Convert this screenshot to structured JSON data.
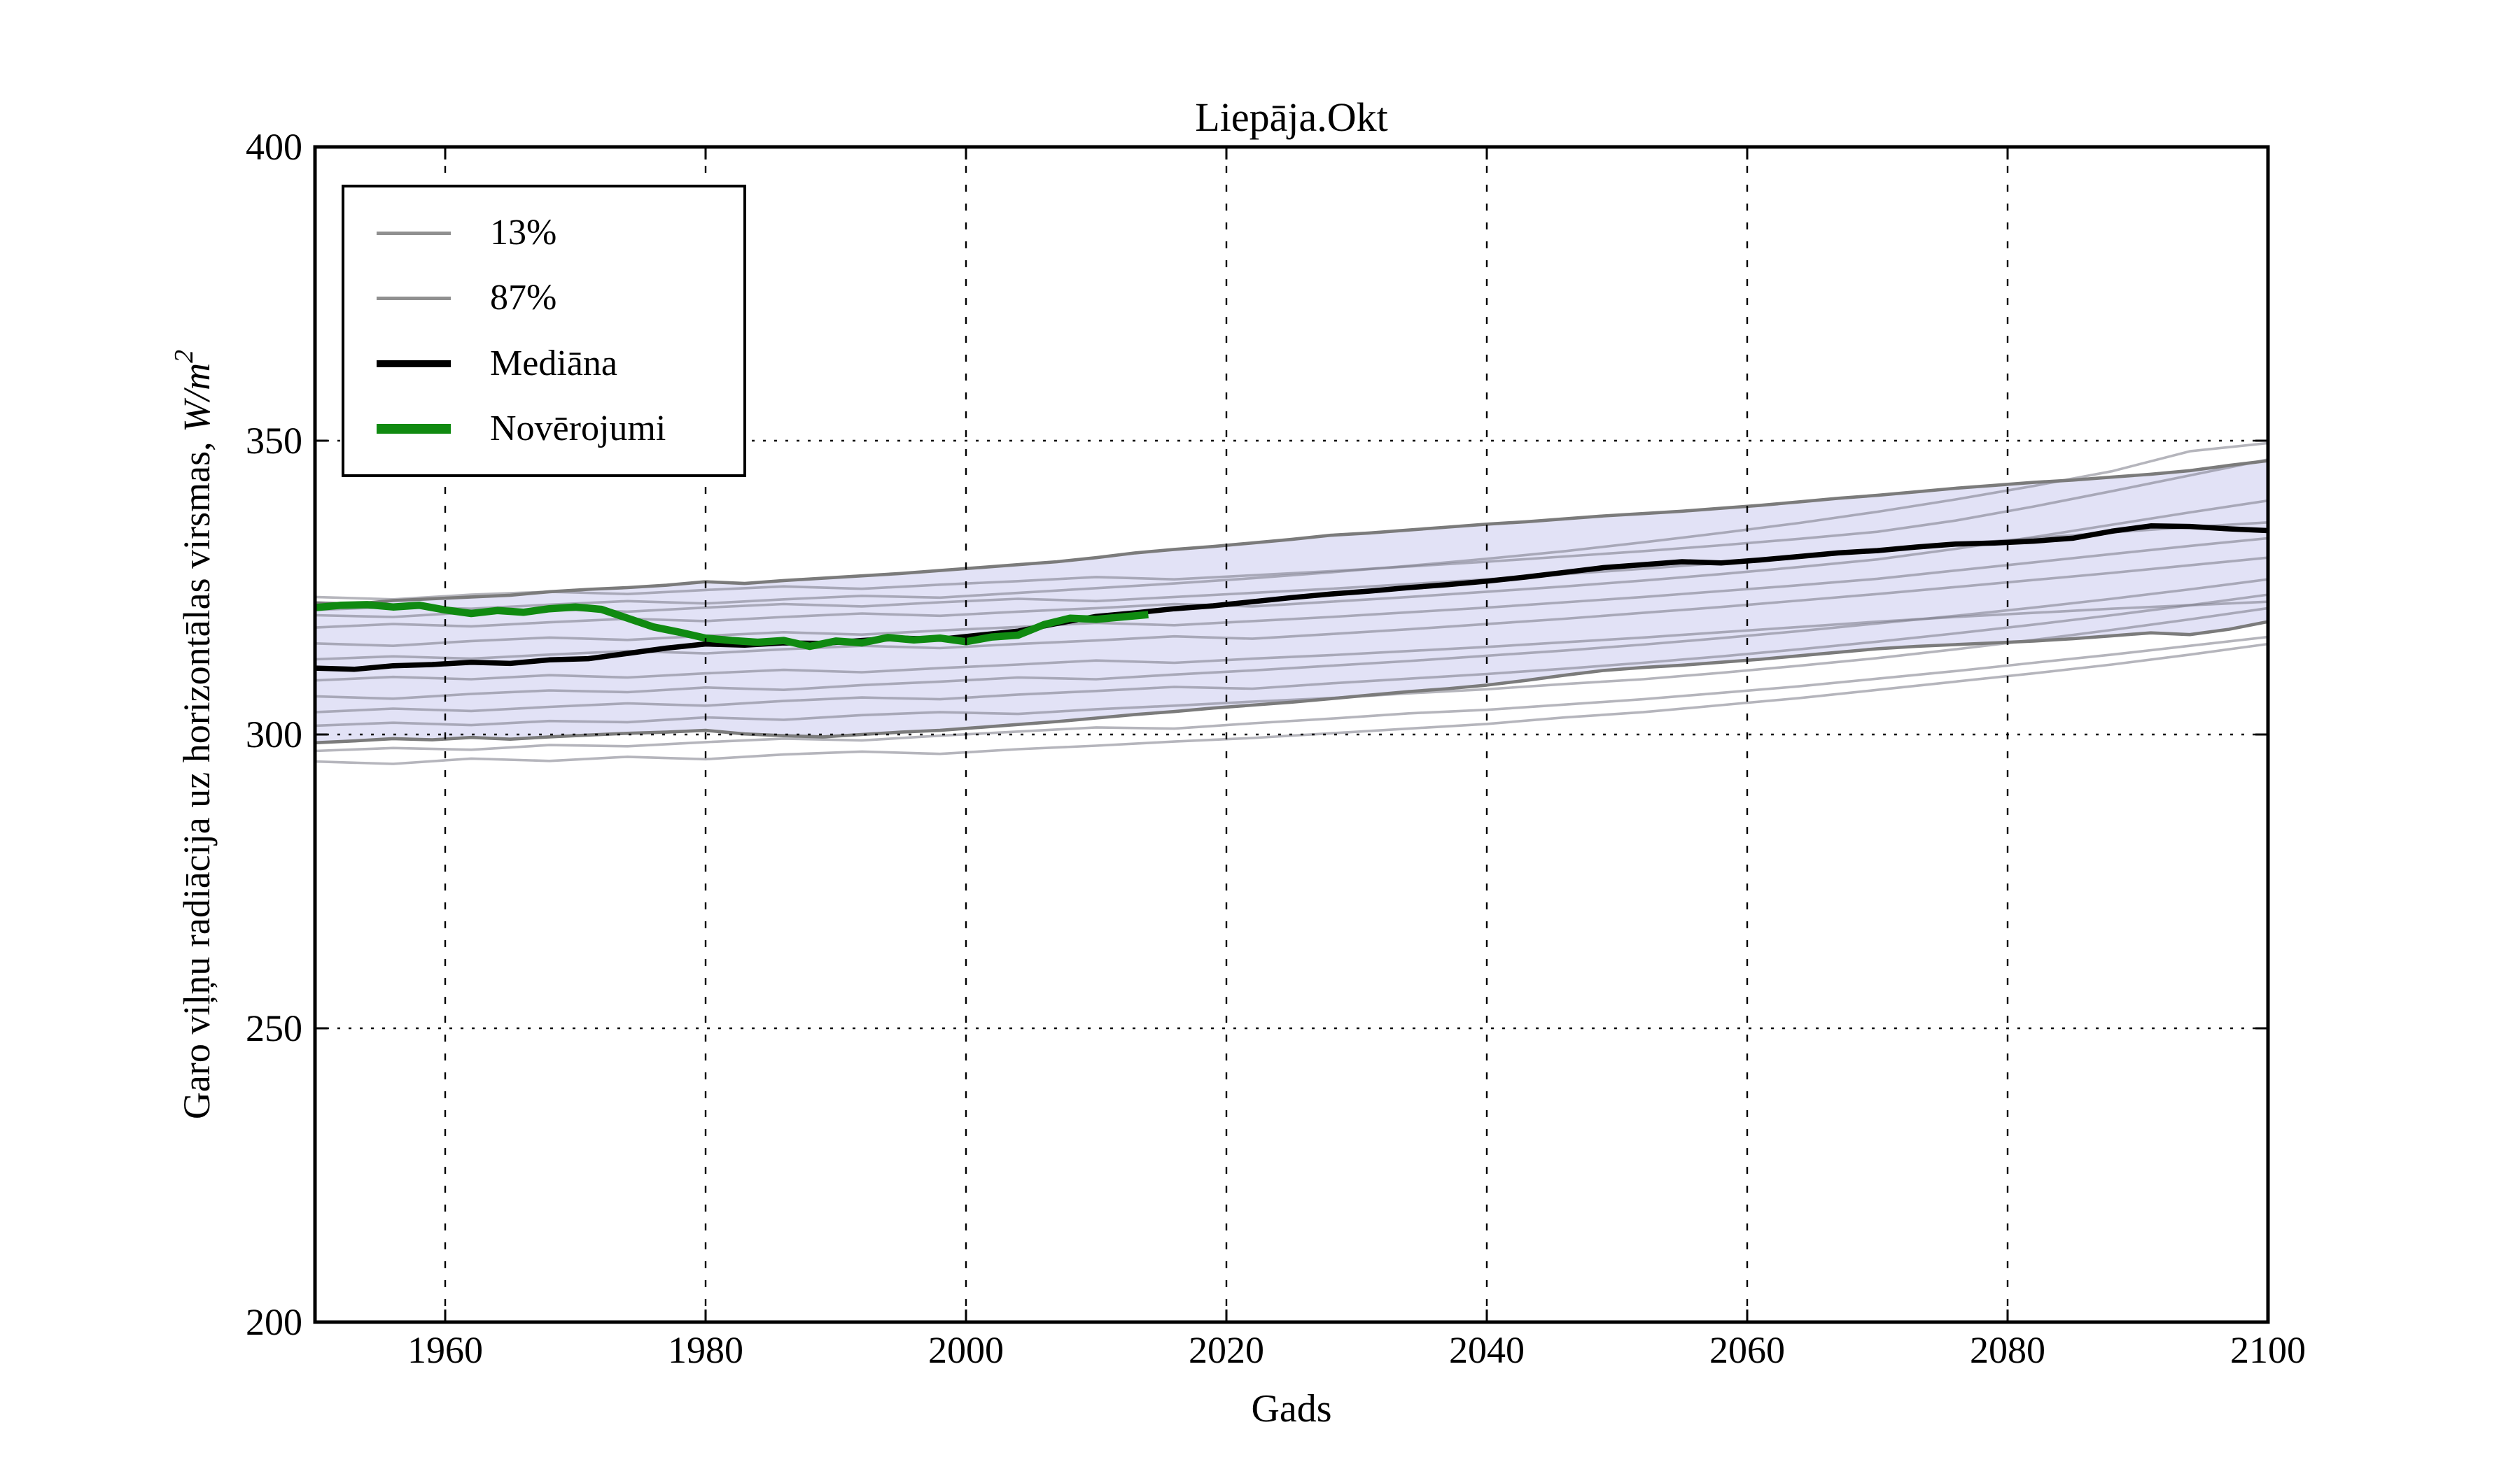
{
  "title": "Liepāja.Okt",
  "axes": {
    "xlabel": "Gads",
    "ylabel_prefix": "Garo viļņu radiācija uz horizontālas virsmas, ",
    "ylabel_math": "W/m",
    "ylabel_sup": "2",
    "ytick_labels": [
      "400",
      "350",
      "300",
      "250",
      "200"
    ],
    "xtick_labels": [
      "1960",
      "1980",
      "2000",
      "2020",
      "2040",
      "2060",
      "2080",
      "2100"
    ]
  },
  "legend": {
    "items": [
      {
        "label": "13%",
        "color": "#909090",
        "thickness": 5
      },
      {
        "label": "87%",
        "color": "#909090",
        "thickness": 5
      },
      {
        "label": "Mediāna",
        "color": "#000000",
        "thickness": 10
      },
      {
        "label": "Novērojumi",
        "color": "#108a11",
        "thickness": 14
      }
    ]
  },
  "chart_data": {
    "type": "line",
    "title": "Liepāja.Okt",
    "xlabel": "Gads",
    "ylabel": "Garo viļņu radiācija uz horizontālas virsmas, W/m^2",
    "xlim": [
      1950,
      2100
    ],
    "ylim": [
      200,
      400
    ],
    "xticks": [
      1960,
      1980,
      2000,
      2020,
      2040,
      2060,
      2080,
      2100
    ],
    "yticks": [
      200,
      250,
      300,
      350,
      400
    ],
    "grid": "dotted",
    "legend_position": "upper left",
    "styles": {
      "band_fill": "#e2e2f6",
      "member_stroke": "rgba(120,120,133,0.55)",
      "percentile_stroke": "#7b7b7b",
      "median_stroke": "#000000",
      "obs_stroke": "#108a11",
      "grid_stroke": "#000000",
      "frame_stroke": "#000000"
    },
    "years_main": [
      1950,
      1953,
      1956,
      1959,
      1962,
      1965,
      1968,
      1971,
      1974,
      1977,
      1980,
      1983,
      1986,
      1989,
      1992,
      1995,
      1998,
      2001,
      2004,
      2007,
      2010,
      2013,
      2016,
      2019,
      2022,
      2025,
      2028,
      2031,
      2034,
      2037,
      2040,
      2043,
      2046,
      2049,
      2052,
      2055,
      2058,
      2061,
      2064,
      2067,
      2070,
      2073,
      2076,
      2079,
      2082,
      2085,
      2088,
      2091,
      2094,
      2097,
      2100
    ],
    "median": [
      311.3,
      311.1,
      311.7,
      311.9,
      312.3,
      312.1,
      312.7,
      312.9,
      313.8,
      314.7,
      315.4,
      315.2,
      315.6,
      315.5,
      316.0,
      316.4,
      316.2,
      316.9,
      317.6,
      318.9,
      320.1,
      320.7,
      321.4,
      321.9,
      322.6,
      323.3,
      323.9,
      324.4,
      325.0,
      325.5,
      326.1,
      326.8,
      327.6,
      328.4,
      328.9,
      329.4,
      329.2,
      329.7,
      330.3,
      330.9,
      331.3,
      331.9,
      332.4,
      332.6,
      332.9,
      333.4,
      334.6,
      335.5,
      335.4,
      335.0,
      334.7
    ],
    "p87": [
      322.4,
      322.2,
      322.8,
      323.1,
      323.4,
      323.7,
      324.3,
      324.7,
      325.0,
      325.4,
      326.0,
      325.7,
      326.2,
      326.6,
      327.0,
      327.4,
      327.9,
      328.4,
      328.9,
      329.4,
      330.1,
      330.9,
      331.5,
      332.0,
      332.6,
      333.2,
      333.9,
      334.3,
      334.8,
      335.3,
      335.8,
      336.2,
      336.7,
      337.2,
      337.6,
      338.0,
      338.5,
      339.0,
      339.6,
      340.2,
      340.7,
      341.3,
      341.9,
      342.4,
      342.9,
      343.3,
      343.8,
      344.3,
      344.9,
      345.8,
      346.6
    ],
    "p13": [
      298.6,
      298.9,
      299.3,
      299.1,
      299.5,
      299.2,
      299.6,
      299.9,
      300.2,
      300.4,
      300.7,
      300.1,
      299.8,
      299.6,
      300.0,
      300.4,
      300.7,
      301.2,
      301.7,
      302.2,
      302.8,
      303.4,
      303.9,
      304.5,
      305.0,
      305.5,
      306.1,
      306.7,
      307.3,
      307.8,
      308.4,
      309.2,
      310.1,
      310.9,
      311.4,
      311.8,
      312.3,
      312.8,
      313.4,
      314.0,
      314.6,
      315.0,
      315.3,
      315.6,
      315.9,
      316.3,
      316.8,
      317.3,
      317.0,
      317.9,
      319.2
    ],
    "years_obs": [
      1950,
      1952,
      1954,
      1956,
      1958,
      1960,
      1962,
      1964,
      1966,
      1968,
      1970,
      1972,
      1974,
      1976,
      1978,
      1980,
      1982,
      1984,
      1986,
      1988,
      1990,
      1992,
      1994,
      1996,
      1998,
      2000,
      2002,
      2004,
      2006,
      2008,
      2010,
      2012,
      2014
    ],
    "observations": [
      321.6,
      322.0,
      322.1,
      321.7,
      322.0,
      321.2,
      320.6,
      321.1,
      320.8,
      321.4,
      321.7,
      321.3,
      319.8,
      318.3,
      317.4,
      316.4,
      316.0,
      315.7,
      316.0,
      315.0,
      315.9,
      315.6,
      316.5,
      316.1,
      316.4,
      315.8,
      316.6,
      316.9,
      318.7,
      319.8,
      319.6,
      320.0,
      320.4
    ],
    "years_members": [
      1950,
      1956,
      1962,
      1968,
      1974,
      1980,
      1986,
      1992,
      1998,
      2004,
      2010,
      2016,
      2022,
      2028,
      2034,
      2040,
      2046,
      2052,
      2058,
      2064,
      2070,
      2076,
      2082,
      2088,
      2094,
      2100
    ],
    "members": [
      [
        295.4,
        295.0,
        295.9,
        295.5,
        296.2,
        295.8,
        296.6,
        297.1,
        296.7,
        297.5,
        298.1,
        298.8,
        299.4,
        300.2,
        301.0,
        301.8,
        302.9,
        303.8,
        305.0,
        306.2,
        307.6,
        309.0,
        310.4,
        311.9,
        313.6,
        315.4
      ],
      [
        297.2,
        297.7,
        297.4,
        298.2,
        298.0,
        298.7,
        299.3,
        299.0,
        299.8,
        300.5,
        301.2,
        301.0,
        301.9,
        302.7,
        303.6,
        304.2,
        305.1,
        306.0,
        307.1,
        308.2,
        309.5,
        310.8,
        312.2,
        313.6,
        315.1,
        316.6
      ],
      [
        301.5,
        302.0,
        301.6,
        302.3,
        302.1,
        302.9,
        302.5,
        303.3,
        303.8,
        303.5,
        304.3,
        304.9,
        305.6,
        306.2,
        307.0,
        307.7,
        308.6,
        309.4,
        310.5,
        311.7,
        313.0,
        314.5,
        316.1,
        317.8,
        319.6,
        321.5
      ],
      [
        303.8,
        304.4,
        304.0,
        304.7,
        305.3,
        304.9,
        305.7,
        306.3,
        306.0,
        306.8,
        307.4,
        308.1,
        307.8,
        308.7,
        309.5,
        310.3,
        311.2,
        312.2,
        313.3,
        314.5,
        315.8,
        317.2,
        318.7,
        320.3,
        322.0,
        323.8
      ],
      [
        306.5,
        306.1,
        306.9,
        307.5,
        307.2,
        308.0,
        307.6,
        308.4,
        309.0,
        309.7,
        309.4,
        310.2,
        310.9,
        311.7,
        312.5,
        313.4,
        314.3,
        315.3,
        316.4,
        317.6,
        318.9,
        320.2,
        321.6,
        323.1,
        324.7,
        326.4
      ],
      [
        309.2,
        309.8,
        309.4,
        310.1,
        309.7,
        310.4,
        311.0,
        310.6,
        311.3,
        311.9,
        312.6,
        312.2,
        312.9,
        313.5,
        314.2,
        314.9,
        315.7,
        316.5,
        317.4,
        318.3,
        319.2,
        320.0,
        320.7,
        321.4,
        322.0,
        322.6
      ],
      [
        312.8,
        313.3,
        312.9,
        313.6,
        314.2,
        313.8,
        314.5,
        315.1,
        314.7,
        315.4,
        316.0,
        316.7,
        316.3,
        317.1,
        317.9,
        318.8,
        319.7,
        320.7,
        321.7,
        322.8,
        323.9,
        325.1,
        326.3,
        327.5,
        328.8,
        330.1
      ],
      [
        315.5,
        315.1,
        315.9,
        316.5,
        316.1,
        316.8,
        317.4,
        317.0,
        317.7,
        318.3,
        319.0,
        318.6,
        319.3,
        320.0,
        320.8,
        321.6,
        322.5,
        323.4,
        324.4,
        325.4,
        326.5,
        327.9,
        329.3,
        330.7,
        332.1,
        333.4
      ],
      [
        318.2,
        318.8,
        318.4,
        319.1,
        319.7,
        319.3,
        320.0,
        320.6,
        320.2,
        320.9,
        321.5,
        322.2,
        321.8,
        322.6,
        323.4,
        324.3,
        325.2,
        326.2,
        327.3,
        328.5,
        329.8,
        331.6,
        333.6,
        335.7,
        337.8,
        339.8
      ],
      [
        320.3,
        320.0,
        320.8,
        321.3,
        320.9,
        321.6,
        322.2,
        321.8,
        322.5,
        323.1,
        322.7,
        323.4,
        324.1,
        324.8,
        325.6,
        326.4,
        327.3,
        328.2,
        329.2,
        330.2,
        331.3,
        332.4,
        333.4,
        334.4,
        335.3,
        336.1
      ],
      [
        321.2,
        321.7,
        321.4,
        322.1,
        322.7,
        322.3,
        323.0,
        323.6,
        323.3,
        324.1,
        324.9,
        325.7,
        326.6,
        327.6,
        328.7,
        329.9,
        331.2,
        332.7,
        334.3,
        336.0,
        337.9,
        340.0,
        342.3,
        344.8,
        348.2,
        349.6
      ],
      [
        323.4,
        323.0,
        323.8,
        324.3,
        323.9,
        324.6,
        325.2,
        324.8,
        325.5,
        326.1,
        326.8,
        326.4,
        327.1,
        327.8,
        328.6,
        329.4,
        330.3,
        331.2,
        332.2,
        333.3,
        334.5,
        336.4,
        338.8,
        341.4,
        344.1,
        346.8
      ]
    ],
    "series": [
      {
        "name": "13%",
        "role": "lower-percentile"
      },
      {
        "name": "87%",
        "role": "upper-percentile"
      },
      {
        "name": "Mediāna",
        "role": "median"
      },
      {
        "name": "Novērojumi",
        "role": "observations"
      }
    ]
  }
}
